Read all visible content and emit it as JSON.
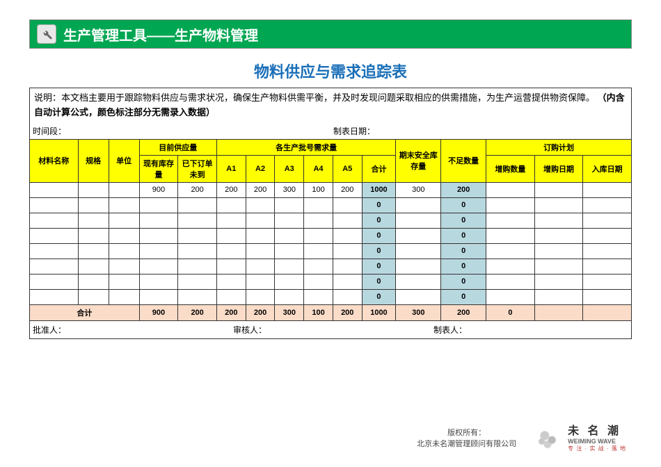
{
  "banner": {
    "title": "生产管理工具——生产物料管理"
  },
  "title": "物料供应与需求追踪表",
  "desc": {
    "prefix": "说明：本文档主要用于跟踪物料供应与需求状况，确保生产物料供需平衡，并及时发现问题采取相应的供需措施，为生产运营提供物资保障。",
    "bold": "（内含自动计算公式，颜色标注部分无需录入数据）"
  },
  "meta": {
    "period_label": "时间段：",
    "date_label": "制表日期："
  },
  "table": {
    "headers": {
      "material": "材料名称",
      "spec": "规格",
      "unit": "单位",
      "supply_group": "目前供应量",
      "supply_stock": "现有库存量",
      "supply_pending": "已下订单未到",
      "demand_group": "各生产批号需求量",
      "a1": "A1",
      "a2": "A2",
      "a3": "A3",
      "a4": "A4",
      "a5": "A5",
      "subtotal": "合计",
      "safety": "期末安全库存量",
      "shortage": "不足数量",
      "plan_group": "订购计划",
      "plan_qty": "增购数量",
      "plan_date": "增购日期",
      "plan_in": "入库日期"
    },
    "rows": [
      {
        "name": "",
        "spec": "",
        "unit": "",
        "stock": "900",
        "pending": "200",
        "a1": "200",
        "a2": "200",
        "a3": "300",
        "a4": "100",
        "a5": "200",
        "sum": "1000",
        "safety": "300",
        "short": "200",
        "pq": "",
        "pd": "",
        "pi": ""
      },
      {
        "name": "",
        "spec": "",
        "unit": "",
        "stock": "",
        "pending": "",
        "a1": "",
        "a2": "",
        "a3": "",
        "a4": "",
        "a5": "",
        "sum": "0",
        "safety": "",
        "short": "0",
        "pq": "",
        "pd": "",
        "pi": ""
      },
      {
        "name": "",
        "spec": "",
        "unit": "",
        "stock": "",
        "pending": "",
        "a1": "",
        "a2": "",
        "a3": "",
        "a4": "",
        "a5": "",
        "sum": "0",
        "safety": "",
        "short": "0",
        "pq": "",
        "pd": "",
        "pi": ""
      },
      {
        "name": "",
        "spec": "",
        "unit": "",
        "stock": "",
        "pending": "",
        "a1": "",
        "a2": "",
        "a3": "",
        "a4": "",
        "a5": "",
        "sum": "0",
        "safety": "",
        "short": "0",
        "pq": "",
        "pd": "",
        "pi": ""
      },
      {
        "name": "",
        "spec": "",
        "unit": "",
        "stock": "",
        "pending": "",
        "a1": "",
        "a2": "",
        "a3": "",
        "a4": "",
        "a5": "",
        "sum": "0",
        "safety": "",
        "short": "0",
        "pq": "",
        "pd": "",
        "pi": ""
      },
      {
        "name": "",
        "spec": "",
        "unit": "",
        "stock": "",
        "pending": "",
        "a1": "",
        "a2": "",
        "a3": "",
        "a4": "",
        "a5": "",
        "sum": "0",
        "safety": "",
        "short": "0",
        "pq": "",
        "pd": "",
        "pi": ""
      },
      {
        "name": "",
        "spec": "",
        "unit": "",
        "stock": "",
        "pending": "",
        "a1": "",
        "a2": "",
        "a3": "",
        "a4": "",
        "a5": "",
        "sum": "0",
        "safety": "",
        "short": "0",
        "pq": "",
        "pd": "",
        "pi": ""
      },
      {
        "name": "",
        "spec": "",
        "unit": "",
        "stock": "",
        "pending": "",
        "a1": "",
        "a2": "",
        "a3": "",
        "a4": "",
        "a5": "",
        "sum": "0",
        "safety": "",
        "short": "0",
        "pq": "",
        "pd": "",
        "pi": ""
      }
    ],
    "total": {
      "label": "合计",
      "stock": "900",
      "pending": "200",
      "a1": "200",
      "a2": "200",
      "a3": "300",
      "a4": "100",
      "a5": "200",
      "sum": "1000",
      "safety": "300",
      "short": "200",
      "pq": "0",
      "pd": "",
      "pi": ""
    }
  },
  "sign": {
    "approver": "批准人：",
    "reviewer": "审核人：",
    "preparer": "制表人："
  },
  "footer": {
    "copyright": "版权所有：",
    "company": "北京未名潮管理顾问有限公司",
    "logo_cn": "未 名 潮",
    "logo_en": "WEIMING WAVE",
    "logo_tag": "专 注 · 实 战 · 落 地"
  },
  "colors": {
    "banner_bg": "#00a651",
    "title_color": "#1a6fb8",
    "header_bg": "#ffff00",
    "calc_bg": "#b8d8e0",
    "total_bg": "#fadcc8",
    "border": "#333333"
  }
}
